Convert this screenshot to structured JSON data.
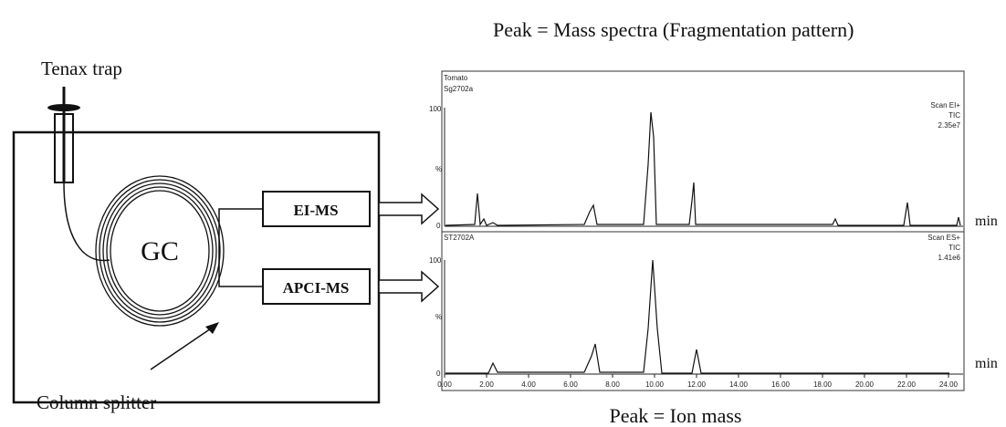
{
  "header": {
    "top_caption": "Peak = Mass spectra (Fragmentation pattern)",
    "bottom_caption": "Peak = Ion mass"
  },
  "instrument": {
    "trap": "Tenax trap",
    "gc": "GC",
    "splitter": "Column splitter",
    "detectors": [
      "EI-MS",
      "APCI-MS"
    ]
  },
  "chromatograms": [
    {
      "sample": "Tomato",
      "id": "Sg2702a",
      "scan": "Scan EI+",
      "trace": "TIC",
      "intensity": "2.35e7",
      "y_top": "100",
      "y_mid": "%",
      "y_zero": "0",
      "x_unit": "min"
    },
    {
      "sample": null,
      "id": "ST2702A",
      "scan": "Scan ES+",
      "trace": "TIC",
      "intensity": "1.41e6",
      "y_top": "100",
      "y_mid": "%",
      "y_zero": "0",
      "x_unit": "min"
    }
  ],
  "x_axis": {
    "labels": [
      "0.00",
      "2.00",
      "4.00",
      "6.00",
      "8.00",
      "10.00",
      "12.00",
      "14.00",
      "16.00",
      "18.00",
      "20.00",
      "22.00",
      "24.00"
    ]
  }
}
